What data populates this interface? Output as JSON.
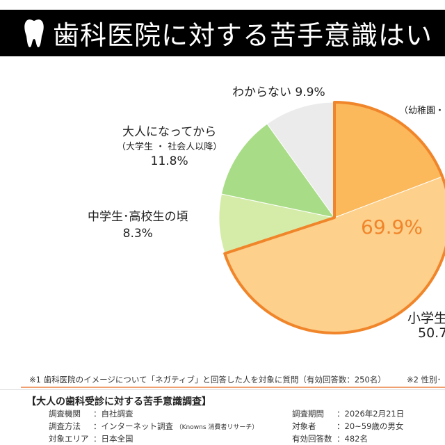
{
  "header": {
    "title": "歯科医院に対する苦手意識はい",
    "icon": "tooth-icon"
  },
  "chart_data": {
    "type": "pie",
    "start": "top",
    "direction": "clockwise",
    "slices": [
      {
        "label": "（幼稚園・",
        "value": 19.2,
        "color": "#fbb95c"
      },
      {
        "label": "小学生",
        "value_label": "50.7",
        "value": 50.7,
        "color": "#fdd08c"
      },
      {
        "label": "中学生･高校生の頃",
        "value_label": "8.3%",
        "value": 8.3,
        "color": "#d5eca9"
      },
      {
        "label": "大人になってから",
        "sublabel": "（大学生 ・ 社会人以降）",
        "value_label": "11.8%",
        "value": 11.8,
        "color": "#a8dc86"
      },
      {
        "label": "わからない 9.9%",
        "value": 9.9,
        "color": "#ebebeb"
      }
    ],
    "highlight": {
      "label": "69.9%",
      "value": 69.9,
      "color": "#f0852a"
    }
  },
  "footnotes": {
    "note1": "※1 歯科医院のイメージについて「ネガティブ」と回答した人を対象に質問（有効回答数：250名）",
    "note2": "※2 性別･"
  },
  "survey": {
    "title": "【大人の歯科受診に対する苦手意識調査】",
    "left": [
      {
        "key": "調査機関",
        "value": "：自社調査"
      },
      {
        "key": "調査方法",
        "value": "：インターネット調査",
        "note": "（Knowns 消費者リサーチ）"
      },
      {
        "key": "対象エリア",
        "value": "：日本全国"
      }
    ],
    "right": [
      {
        "key": "調査期間",
        "value": "：2026年2月21日"
      },
      {
        "key": "対象者",
        "value": "：20~59歳の男女"
      },
      {
        "key": "有効回答数",
        "value": "：482名"
      }
    ]
  }
}
